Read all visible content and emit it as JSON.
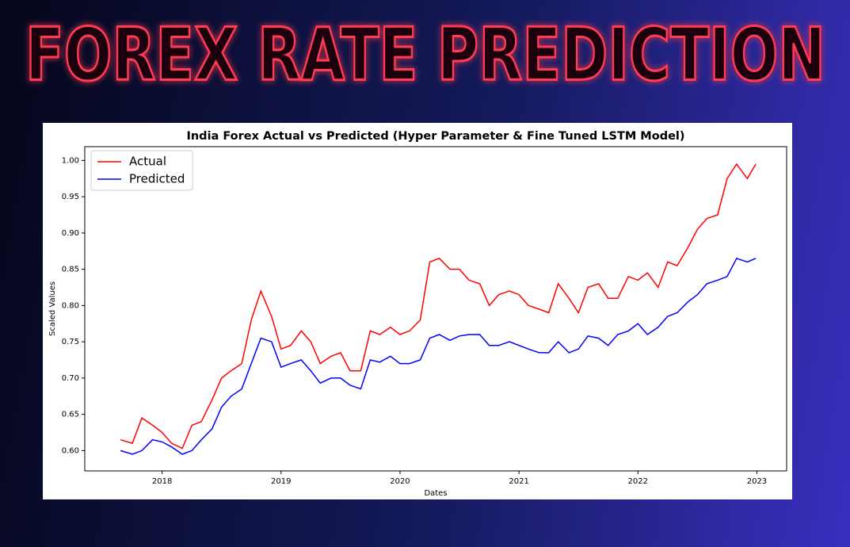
{
  "header": {
    "title": "FOREX RATE PREDICTION"
  },
  "chart_data": {
    "type": "line",
    "title": "India Forex Actual vs Predicted (Hyper Parameter & Fine Tuned LSTM Model)",
    "x_label": "Dates",
    "y_label": "Scaled Values",
    "x": [
      2017.65,
      2017.75,
      2017.83,
      2017.92,
      2018.0,
      2018.08,
      2018.17,
      2018.25,
      2018.33,
      2018.42,
      2018.5,
      2018.58,
      2018.67,
      2018.75,
      2018.83,
      2018.92,
      2019.0,
      2019.08,
      2019.17,
      2019.25,
      2019.33,
      2019.42,
      2019.5,
      2019.58,
      2019.67,
      2019.75,
      2019.83,
      2019.92,
      2020.0,
      2020.08,
      2020.17,
      2020.25,
      2020.33,
      2020.42,
      2020.5,
      2020.58,
      2020.67,
      2020.75,
      2020.83,
      2020.92,
      2021.0,
      2021.08,
      2021.17,
      2021.25,
      2021.33,
      2021.42,
      2021.5,
      2021.58,
      2021.67,
      2021.75,
      2021.83,
      2021.92,
      2022.0,
      2022.08,
      2022.17,
      2022.25,
      2022.33,
      2022.42,
      2022.5,
      2022.58,
      2022.67,
      2022.75,
      2022.83,
      2022.92,
      2022.99
    ],
    "series": [
      {
        "name": "Actual",
        "color": "#ff0000",
        "values": [
          0.615,
          0.61,
          0.645,
          0.635,
          0.625,
          0.61,
          0.603,
          0.635,
          0.64,
          0.67,
          0.7,
          0.71,
          0.72,
          0.78,
          0.82,
          0.785,
          0.74,
          0.745,
          0.765,
          0.75,
          0.72,
          0.73,
          0.735,
          0.71,
          0.71,
          0.765,
          0.76,
          0.77,
          0.76,
          0.765,
          0.78,
          0.86,
          0.865,
          0.85,
          0.85,
          0.835,
          0.83,
          0.8,
          0.815,
          0.82,
          0.815,
          0.8,
          0.795,
          0.79,
          0.83,
          0.81,
          0.79,
          0.825,
          0.83,
          0.81,
          0.81,
          0.84,
          0.835,
          0.845,
          0.825,
          0.86,
          0.855,
          0.88,
          0.905,
          0.92,
          0.925,
          0.975,
          0.995,
          0.975,
          0.995
        ]
      },
      {
        "name": "Predicted",
        "color": "#0000ff",
        "values": [
          0.6,
          0.595,
          0.6,
          0.615,
          0.612,
          0.605,
          0.595,
          0.6,
          0.615,
          0.63,
          0.66,
          0.675,
          0.685,
          0.72,
          0.755,
          0.75,
          0.715,
          0.72,
          0.725,
          0.71,
          0.693,
          0.7,
          0.7,
          0.69,
          0.685,
          0.725,
          0.722,
          0.73,
          0.72,
          0.72,
          0.725,
          0.755,
          0.76,
          0.752,
          0.758,
          0.76,
          0.76,
          0.745,
          0.745,
          0.75,
          0.745,
          0.74,
          0.735,
          0.735,
          0.75,
          0.735,
          0.74,
          0.758,
          0.755,
          0.745,
          0.76,
          0.765,
          0.775,
          0.76,
          0.77,
          0.785,
          0.79,
          0.805,
          0.815,
          0.83,
          0.835,
          0.84,
          0.865,
          0.86,
          0.865
        ]
      }
    ],
    "xlim": [
      2017.35,
      2023.25
    ],
    "xticks": [
      2018,
      2019,
      2020,
      2021,
      2022,
      2023
    ],
    "ylim": [
      0.572,
      1.019
    ],
    "yticks": [
      {
        "value": 0.6,
        "label": "0.60"
      },
      0.65,
      {
        "value": 0.7,
        "label": "0.70"
      },
      0.75,
      {
        "value": 0.8,
        "label": "0.80"
      },
      0.85,
      {
        "value": 0.9,
        "label": "0.90"
      },
      0.95,
      {
        "value": 1.0,
        "label": "1.00"
      }
    ],
    "grid": false,
    "legend": "upper left"
  }
}
